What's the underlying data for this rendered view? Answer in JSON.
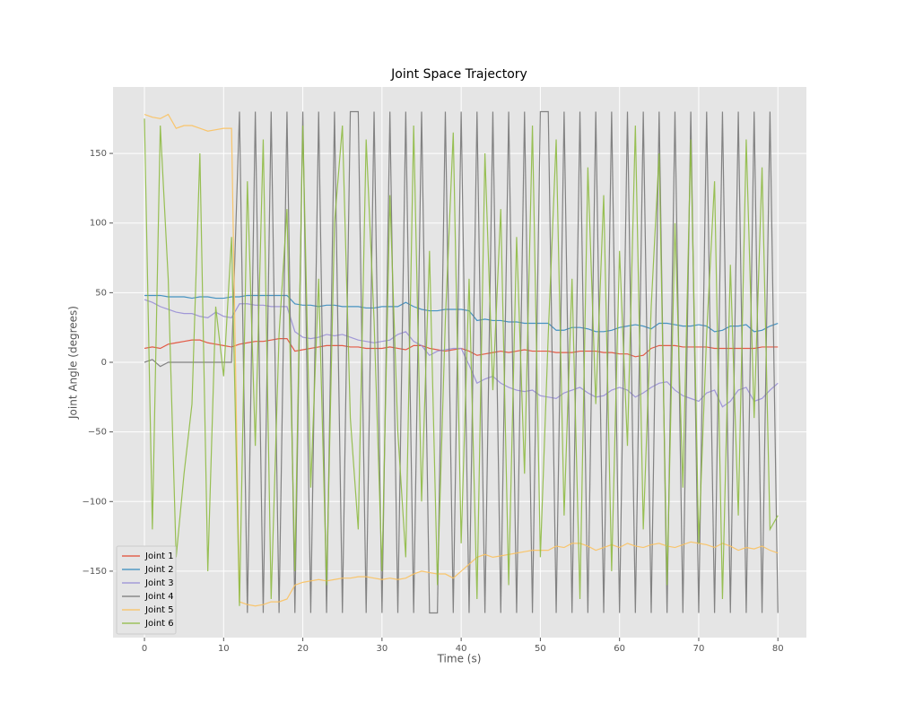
{
  "chart_data": {
    "type": "line",
    "title": "Joint Space Trajectory",
    "x_label": "Time (s)",
    "y_label": "Joint Angle (degrees)",
    "x": [
      0,
      1,
      2,
      3,
      4,
      5,
      6,
      7,
      8,
      9,
      10,
      11,
      12,
      13,
      14,
      15,
      16,
      17,
      18,
      19,
      20,
      21,
      22,
      23,
      24,
      25,
      26,
      27,
      28,
      29,
      30,
      31,
      32,
      33,
      34,
      35,
      36,
      37,
      38,
      39,
      40,
      41,
      42,
      43,
      44,
      45,
      46,
      47,
      48,
      49,
      50,
      51,
      52,
      53,
      54,
      55,
      56,
      57,
      58,
      59,
      60,
      61,
      62,
      63,
      64,
      65,
      66,
      67,
      68,
      69,
      70,
      71,
      72,
      73,
      74,
      75,
      76,
      77,
      78,
      79,
      80
    ],
    "series": [
      {
        "name": "Joint 1",
        "color": "#E24A33",
        "values": [
          10,
          11,
          10,
          13,
          14,
          15,
          16,
          16,
          14,
          13,
          12,
          11,
          13,
          14,
          15,
          15,
          16,
          17,
          17,
          8,
          9,
          10,
          11,
          12,
          12,
          12,
          11,
          11,
          10,
          10,
          10,
          11,
          10,
          9,
          12,
          12,
          10,
          9,
          8,
          9,
          10,
          8,
          5,
          6,
          7,
          8,
          7,
          8,
          9,
          8,
          8,
          8,
          7,
          7,
          7,
          8,
          8,
          8,
          7,
          7,
          6,
          6,
          4,
          5,
          10,
          12,
          12,
          12,
          11,
          11,
          11,
          11,
          10,
          10,
          10,
          10,
          10,
          10,
          11,
          11,
          11
        ]
      },
      {
        "name": "Joint 2",
        "color": "#348ABD",
        "values": [
          48,
          48,
          48,
          47,
          47,
          47,
          46,
          47,
          47,
          46,
          46,
          47,
          47,
          48,
          48,
          48,
          48,
          48,
          48,
          42,
          41,
          41,
          40,
          41,
          41,
          40,
          40,
          40,
          39,
          39,
          40,
          40,
          40,
          43,
          40,
          38,
          37,
          37,
          38,
          38,
          38,
          37,
          30,
          31,
          30,
          30,
          29,
          29,
          28,
          28,
          28,
          28,
          23,
          23,
          25,
          25,
          24,
          22,
          22,
          23,
          25,
          26,
          27,
          26,
          24,
          28,
          28,
          27,
          26,
          26,
          27,
          26,
          22,
          23,
          26,
          26,
          27,
          22,
          23,
          26,
          28
        ]
      },
      {
        "name": "Joint 3",
        "color": "#988ED5",
        "values": [
          45,
          43,
          40,
          38,
          36,
          35,
          35,
          33,
          32,
          36,
          33,
          32,
          42,
          42,
          41,
          41,
          40,
          40,
          40,
          22,
          18,
          17,
          18,
          20,
          19,
          20,
          18,
          16,
          15,
          14,
          15,
          16,
          20,
          22,
          15,
          12,
          5,
          8,
          9,
          10,
          10,
          -2,
          -15,
          -12,
          -10,
          -15,
          -18,
          -20,
          -21,
          -20,
          -24,
          -25,
          -26,
          -22,
          -20,
          -18,
          -22,
          -25,
          -24,
          -20,
          -18,
          -20,
          -25,
          -22,
          -18,
          -15,
          -14,
          -20,
          -24,
          -26,
          -28,
          -22,
          -20,
          -32,
          -28,
          -20,
          -18,
          -28,
          -26,
          -20,
          -15
        ]
      },
      {
        "name": "Joint 4",
        "color": "#777777",
        "values": [
          0,
          2,
          -3,
          0,
          0,
          0,
          0,
          0,
          0,
          0,
          0,
          0,
          180,
          -180,
          180,
          -180,
          180,
          -180,
          180,
          -180,
          180,
          -180,
          180,
          -180,
          180,
          -180,
          180,
          180,
          -180,
          180,
          -180,
          180,
          -180,
          180,
          -180,
          180,
          -180,
          -180,
          180,
          -180,
          180,
          -180,
          180,
          -180,
          180,
          -180,
          180,
          -180,
          180,
          -180,
          180,
          180,
          -180,
          180,
          -180,
          180,
          -180,
          180,
          -180,
          180,
          -180,
          180,
          -180,
          180,
          -180,
          180,
          -180,
          180,
          -180,
          180,
          -180,
          180,
          -180,
          180,
          -180,
          180,
          -180,
          180,
          -180,
          180,
          -180
        ]
      },
      {
        "name": "Joint 5",
        "color": "#FBC15E",
        "values": [
          178,
          176,
          175,
          178,
          168,
          170,
          170,
          168,
          166,
          167,
          168,
          168,
          -172,
          -174,
          -175,
          -174,
          -172,
          -172,
          -170,
          -160,
          -158,
          -157,
          -156,
          -157,
          -156,
          -155,
          -155,
          -154,
          -154,
          -155,
          -156,
          -155,
          -156,
          -155,
          -152,
          -150,
          -151,
          -152,
          -152,
          -155,
          -150,
          -145,
          -140,
          -138,
          -140,
          -139,
          -138,
          -137,
          -136,
          -135,
          -135,
          -135,
          -132,
          -133,
          -130,
          -130,
          -132,
          -135,
          -133,
          -131,
          -133,
          -130,
          -132,
          -133,
          -131,
          -130,
          -132,
          -133,
          -131,
          -129,
          -130,
          -131,
          -133,
          -130,
          -132,
          -135,
          -133,
          -134,
          -132,
          -135,
          -137
        ]
      },
      {
        "name": "Joint 6",
        "color": "#8EBA42",
        "values": [
          175,
          -120,
          170,
          60,
          -140,
          -80,
          -30,
          150,
          -150,
          40,
          -10,
          90,
          -175,
          130,
          -60,
          160,
          -170,
          20,
          110,
          -150,
          170,
          -90,
          60,
          -160,
          100,
          170,
          -40,
          -120,
          160,
          30,
          -150,
          120,
          -50,
          -140,
          170,
          -100,
          80,
          -160,
          30,
          165,
          -130,
          60,
          -170,
          150,
          -20,
          110,
          -160,
          90,
          -80,
          170,
          -140,
          20,
          160,
          -110,
          60,
          -170,
          140,
          -30,
          120,
          -150,
          80,
          -60,
          170,
          -120,
          40,
          150,
          -160,
          100,
          -90,
          160,
          -130,
          20,
          130,
          -170,
          70,
          -110,
          160,
          -40,
          140,
          -120,
          -110
        ]
      }
    ],
    "xlim": [
      -3.97,
      83.6
    ],
    "ylim": [
      -197.7,
      197.7
    ],
    "xticks": [
      0,
      10,
      20,
      30,
      40,
      50,
      60,
      70,
      80
    ],
    "yticks": [
      {
        "value": -150,
        "label": "−150"
      },
      {
        "value": -100,
        "label": "−100"
      },
      {
        "value": -50,
        "label": "−50"
      },
      0,
      50,
      100,
      150
    ],
    "grid": true,
    "legend": "lower left"
  }
}
